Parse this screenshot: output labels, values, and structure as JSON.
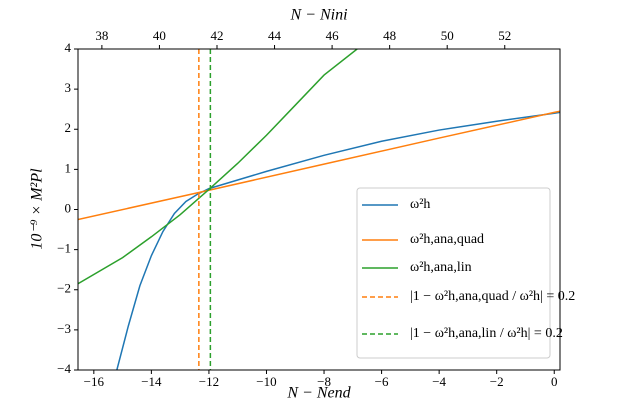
{
  "chart_data": {
    "type": "line",
    "xlabel": "N − Nend",
    "x2label": "N − Nini",
    "ylabel": "10⁻⁹ × M²Pl",
    "xlim": [
      -16.55,
      0.2
    ],
    "xticks": [
      {
        "value": -16,
        "label": "−16"
      },
      {
        "value": -14,
        "label": "−14"
      },
      {
        "value": -12,
        "label": "−12"
      },
      {
        "value": -10,
        "label": "−10"
      },
      {
        "value": -8,
        "label": "−8"
      },
      {
        "value": -6,
        "label": "−6"
      },
      {
        "value": -4,
        "label": "−4"
      },
      {
        "value": -2,
        "label": "−2"
      },
      0
    ],
    "x2lim": [
      37.17,
      53.92
    ],
    "x2ticks": [
      38,
      40,
      42,
      44,
      46,
      48,
      50,
      52
    ],
    "ylim": [
      -4,
      4
    ],
    "yticks": [
      {
        "value": -4,
        "label": "−4"
      },
      {
        "value": -3,
        "label": "−3"
      },
      {
        "value": -2,
        "label": "−2"
      },
      {
        "value": -1,
        "label": "−1"
      },
      0,
      1,
      2,
      3,
      4
    ],
    "legend": "lower right",
    "series": [
      {
        "name": "ω²h",
        "color": "#1f77b4",
        "x": [
          -15.2,
          -14.8,
          -14.4,
          -14,
          -13.6,
          -13.2,
          -12.8,
          -12.4,
          -12,
          -10,
          -8,
          -6,
          -4,
          -2,
          0,
          0.2
        ],
        "values": [
          -4,
          -2.9,
          -1.9,
          -1.15,
          -0.55,
          -0.1,
          0.2,
          0.38,
          0.52,
          0.95,
          1.35,
          1.7,
          1.98,
          2.2,
          2.4,
          2.42
        ]
      },
      {
        "name": "ω²h,ana,quad",
        "color": "#ff7f0e",
        "x": [
          -16.55,
          -12,
          -8,
          -4,
          0,
          0.2
        ],
        "values": [
          -0.25,
          0.48,
          1.13,
          1.78,
          2.42,
          2.45
        ]
      },
      {
        "name": "ω²h,ana,lin",
        "color": "#2ca02c",
        "x": [
          -16.55,
          -15,
          -14,
          -13,
          -12,
          -11,
          -10,
          -9,
          -8,
          -6.85
        ],
        "values": [
          -1.85,
          -1.2,
          -0.68,
          -0.13,
          0.5,
          1.15,
          1.85,
          2.6,
          3.35,
          4
        ]
      },
      {
        "name": "|1 − ω²h,ana,quad / ω²h| = 0.2",
        "color": "#ff7f0e",
        "style": "dashed",
        "vline": -12.35
      },
      {
        "name": "|1 − ω²h,ana,lin / ω²h| = 0.2",
        "color": "#2ca02c",
        "style": "dashed",
        "vline": -11.95
      }
    ]
  }
}
